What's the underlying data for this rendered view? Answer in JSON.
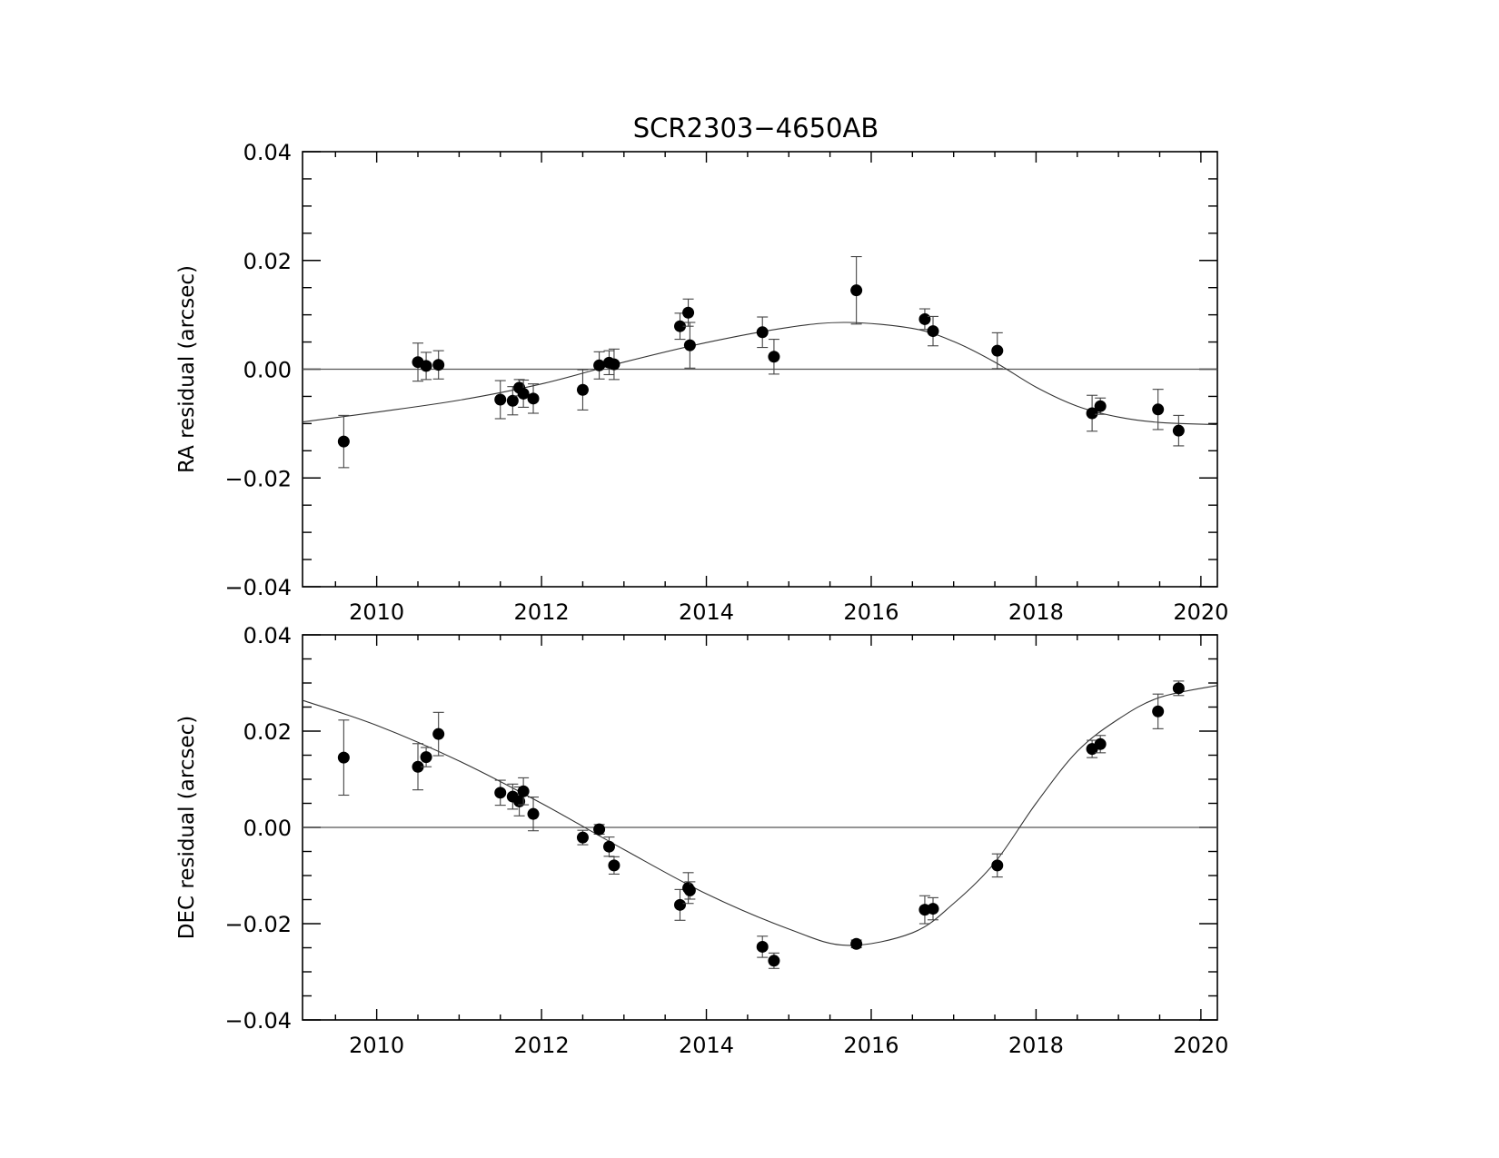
{
  "chart_data": {
    "type": "scatter",
    "title": "SCR2303−4650AB",
    "x_ticks": [
      "2010",
      "2012",
      "2014",
      "2016",
      "2018",
      "2020"
    ],
    "y_ticks": [
      "0.04",
      "0.02",
      "0.00",
      "−0.02",
      "−0.04"
    ],
    "panels": [
      {
        "ylabel": "RA residual (arcsec)",
        "xlim": [
          2009.1,
          2020.2
        ],
        "ylim": [
          -0.04,
          0.04
        ],
        "zero_line": true,
        "fit_curve": {
          "x": [
            2009.1,
            2010,
            2011,
            2012,
            2013,
            2014,
            2015,
            2015.7,
            2016.5,
            2017,
            2017.5,
            2018,
            2018.5,
            2019,
            2019.5,
            2020.2
          ],
          "y": [
            -0.0097,
            -0.0079,
            -0.0057,
            -0.0027,
            0.0013,
            0.0049,
            0.0077,
            0.0086,
            0.0075,
            0.0051,
            0.0013,
            -0.0033,
            -0.0068,
            -0.0088,
            -0.0098,
            -0.0102
          ]
        },
        "points": [
          {
            "x": 2009.6,
            "y": -0.0133,
            "err": 0.0048
          },
          {
            "x": 2010.5,
            "y": 0.0013,
            "err": 0.0035
          },
          {
            "x": 2010.6,
            "y": 0.0006,
            "err": 0.0025
          },
          {
            "x": 2010.75,
            "y": 0.0008,
            "err": 0.0026
          },
          {
            "x": 2011.5,
            "y": -0.0056,
            "err": 0.0035
          },
          {
            "x": 2011.65,
            "y": -0.0058,
            "err": 0.0026
          },
          {
            "x": 2011.73,
            "y": -0.0034,
            "err": 0.0015
          },
          {
            "x": 2011.78,
            "y": -0.0045,
            "err": 0.0025
          },
          {
            "x": 2011.9,
            "y": -0.0054,
            "err": 0.0027
          },
          {
            "x": 2012.5,
            "y": -0.0038,
            "err": 0.0037
          },
          {
            "x": 2012.7,
            "y": 0.0007,
            "err": 0.0025
          },
          {
            "x": 2012.82,
            "y": 0.0012,
            "err": 0.0022
          },
          {
            "x": 2012.88,
            "y": 0.0009,
            "err": 0.0028
          },
          {
            "x": 2013.68,
            "y": 0.0079,
            "err": 0.0024
          },
          {
            "x": 2013.78,
            "y": 0.0104,
            "err": 0.0025
          },
          {
            "x": 2013.8,
            "y": 0.0044,
            "err": 0.0042
          },
          {
            "x": 2014.68,
            "y": 0.0068,
            "err": 0.0028
          },
          {
            "x": 2014.82,
            "y": 0.0023,
            "err": 0.0032
          },
          {
            "x": 2015.82,
            "y": 0.0145,
            "err": 0.0062
          },
          {
            "x": 2016.65,
            "y": 0.0092,
            "err": 0.0019
          },
          {
            "x": 2016.75,
            "y": 0.007,
            "err": 0.0027
          },
          {
            "x": 2017.53,
            "y": 0.0034,
            "err": 0.0033
          },
          {
            "x": 2018.68,
            "y": -0.0081,
            "err": 0.0033
          },
          {
            "x": 2018.78,
            "y": -0.0068,
            "err": 0.0015
          },
          {
            "x": 2019.48,
            "y": -0.0074,
            "err": 0.0037
          },
          {
            "x": 2019.73,
            "y": -0.0113,
            "err": 0.0028
          }
        ]
      },
      {
        "ylabel": "DEC residual (arcsec)",
        "xlim": [
          2009.1,
          2020.2
        ],
        "ylim": [
          -0.04,
          0.04
        ],
        "zero_line": true,
        "fit_curve": {
          "x": [
            2009.1,
            2010,
            2011,
            2012,
            2013,
            2014,
            2015,
            2015.7,
            2016.5,
            2017,
            2017.5,
            2018,
            2018.5,
            2019,
            2019.5,
            2020.2
          ],
          "y": [
            0.0264,
            0.0212,
            0.0138,
            0.005,
            -0.0046,
            -0.0138,
            -0.0211,
            -0.0245,
            -0.0219,
            -0.0158,
            -0.0073,
            0.005,
            0.0158,
            0.0225,
            0.027,
            0.0295
          ]
        },
        "points": [
          {
            "x": 2009.6,
            "y": 0.0145,
            "err": 0.0078
          },
          {
            "x": 2010.5,
            "y": 0.0126,
            "err": 0.0048
          },
          {
            "x": 2010.6,
            "y": 0.0146,
            "err": 0.002
          },
          {
            "x": 2010.75,
            "y": 0.0194,
            "err": 0.0045
          },
          {
            "x": 2011.5,
            "y": 0.0072,
            "err": 0.0026
          },
          {
            "x": 2011.65,
            "y": 0.0064,
            "err": 0.0026
          },
          {
            "x": 2011.73,
            "y": 0.0054,
            "err": 0.003
          },
          {
            "x": 2011.78,
            "y": 0.0075,
            "err": 0.0028
          },
          {
            "x": 2011.9,
            "y": 0.0028,
            "err": 0.0035
          },
          {
            "x": 2012.5,
            "y": -0.0021,
            "err": 0.0015
          },
          {
            "x": 2012.7,
            "y": -0.0004,
            "err": 0.001
          },
          {
            "x": 2012.82,
            "y": -0.004,
            "err": 0.002
          },
          {
            "x": 2012.88,
            "y": -0.0079,
            "err": 0.0018
          },
          {
            "x": 2013.68,
            "y": -0.0161,
            "err": 0.0032
          },
          {
            "x": 2013.78,
            "y": -0.0126,
            "err": 0.0032
          },
          {
            "x": 2013.8,
            "y": -0.0131,
            "err": 0.0018
          },
          {
            "x": 2014.68,
            "y": -0.0248,
            "err": 0.0022
          },
          {
            "x": 2014.82,
            "y": -0.0277,
            "err": 0.0016
          },
          {
            "x": 2015.82,
            "y": -0.0242,
            "err": 0.0008
          },
          {
            "x": 2016.65,
            "y": -0.0171,
            "err": 0.0029
          },
          {
            "x": 2016.75,
            "y": -0.0169,
            "err": 0.0023
          },
          {
            "x": 2017.53,
            "y": -0.0079,
            "err": 0.0024
          },
          {
            "x": 2018.68,
            "y": 0.0163,
            "err": 0.0018
          },
          {
            "x": 2018.78,
            "y": 0.0173,
            "err": 0.0018
          },
          {
            "x": 2019.48,
            "y": 0.0241,
            "err": 0.0036
          },
          {
            "x": 2019.73,
            "y": 0.0289,
            "err": 0.0015
          }
        ]
      }
    ]
  }
}
